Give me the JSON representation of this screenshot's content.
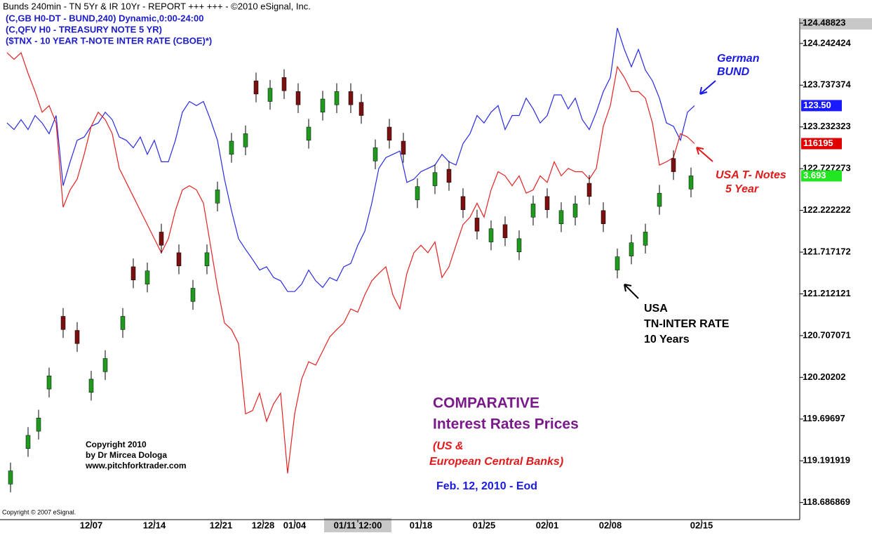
{
  "header": "Bunds  240min - TN 5Yr & IR 10Yr - REPORT +++ +++ - ©2010 eSignal, Inc.",
  "annotations": {
    "bund": [
      "German",
      "BUND"
    ],
    "tnotes": [
      "USA T- Notes",
      "5 Year"
    ],
    "rate": [
      "USA",
      "TN-INTER RATE",
      "10 Years"
    ],
    "title": [
      "COMPARATIVE",
      "Interest Rates Prices"
    ],
    "subtitle": [
      "(US &",
      "European Central Banks)"
    ],
    "date": "Feb. 12, 2010 - Eod",
    "copyright": [
      "Copyright 2010",
      "by Dr Mircea Dologa",
      "www.pitchforktrader.com"
    ],
    "esignal": "Copyright © 2007 eSignal."
  },
  "chart_data": [
    {
      "type": "line",
      "x": [
        0,
        1,
        2,
        3,
        4,
        5,
        6,
        7,
        8,
        9,
        10,
        11,
        12,
        13,
        14,
        15,
        16,
        17,
        18,
        19,
        20,
        21,
        22,
        23,
        24,
        25,
        26,
        27,
        28,
        29,
        30,
        31,
        32,
        33,
        34,
        35,
        36,
        37,
        38,
        39,
        40,
        41,
        42,
        43,
        44,
        45,
        46,
        47,
        48,
        49,
        50,
        51,
        52,
        53,
        54,
        55,
        56,
        57,
        58,
        59,
        60,
        61,
        62,
        63,
        64,
        65,
        66,
        67,
        68,
        69,
        70,
        71,
        72,
        73,
        74,
        75,
        76,
        77,
        78,
        79,
        80,
        81,
        82,
        83,
        84,
        85,
        86,
        87,
        88,
        89,
        90,
        91,
        92,
        93,
        94,
        95,
        96,
        97,
        98
      ],
      "series": [
        {
          "name": "(C,GB H0-DT - BUND,240) Dynamic,0:00-24:00",
          "color": "#2a2ae6",
          "badge_color": "#1a1aff",
          "last_label": "123.50",
          "values": [
            123.28,
            123.2,
            123.32,
            123.2,
            123.37,
            123.28,
            123.15,
            123.37,
            122.52,
            122.81,
            123.07,
            123.11,
            123.24,
            123.28,
            123.41,
            123.32,
            123.11,
            123.07,
            122.98,
            123.11,
            122.9,
            123.07,
            122.81,
            122.81,
            123.07,
            123.41,
            123.54,
            123.49,
            123.54,
            123.32,
            123.07,
            122.6,
            122.22,
            121.88,
            121.75,
            121.63,
            121.5,
            121.54,
            121.41,
            121.37,
            121.24,
            121.24,
            121.33,
            121.5,
            121.37,
            121.29,
            121.41,
            121.37,
            121.54,
            121.58,
            121.8,
            121.97,
            122.31,
            122.73,
            122.86,
            122.9,
            122.94,
            122.56,
            122.6,
            122.69,
            122.73,
            122.77,
            122.9,
            122.81,
            122.77,
            123.03,
            123.15,
            123.37,
            123.28,
            123.41,
            123.49,
            123.2,
            123.37,
            123.37,
            123.58,
            123.45,
            123.28,
            123.37,
            123.62,
            123.62,
            123.45,
            123.58,
            123.32,
            123.2,
            123.41,
            123.66,
            123.83,
            124.43,
            124.17,
            123.96,
            124.17,
            123.92,
            123.79,
            123.58,
            123.28,
            123.24,
            123.07,
            123.41,
            123.49
          ]
        },
        {
          "name": "(C,QFV H0 - TREASURY NOTE 5 YR)",
          "color": "#e42222",
          "badge_color": "#e00000",
          "last_label": "116195",
          "values": [
            124.13,
            124.05,
            124.13,
            123.88,
            123.66,
            123.41,
            123.49,
            123.28,
            122.26,
            122.47,
            122.6,
            122.9,
            123.24,
            123.41,
            123.32,
            123.15,
            122.73,
            122.56,
            122.39,
            122.22,
            122.05,
            121.88,
            121.71,
            121.88,
            122.22,
            122.47,
            122.52,
            122.47,
            122.31,
            121.8,
            121.29,
            120.86,
            120.78,
            120.61,
            119.76,
            119.8,
            120.01,
            119.67,
            119.88,
            120.01,
            119.04,
            119.76,
            120.18,
            120.39,
            120.35,
            120.52,
            120.69,
            120.78,
            120.86,
            121.03,
            120.99,
            121.2,
            121.37,
            121.46,
            121.54,
            121.2,
            121.03,
            121.46,
            121.71,
            121.8,
            121.71,
            121.84,
            121.41,
            121.54,
            121.8,
            122.05,
            122.14,
            122.31,
            122.14,
            122.47,
            122.69,
            122.64,
            122.52,
            122.64,
            122.43,
            122.47,
            122.64,
            122.56,
            122.81,
            122.64,
            122.73,
            122.69,
            122.69,
            122.6,
            122.73,
            123.24,
            123.49,
            123.96,
            123.83,
            123.66,
            123.66,
            123.58,
            123.28,
            122.77,
            122.81,
            122.86,
            123.15,
            123.11,
            123.03
          ]
        }
      ],
      "xlim": [
        0,
        113
      ],
      "xticks": [
        {
          "value": 12,
          "label": "12/07"
        },
        {
          "value": 21,
          "label": "12/14"
        },
        {
          "value": 30.5,
          "label": "12/21"
        },
        {
          "value": 36.5,
          "label": "12/28"
        },
        {
          "value": 41,
          "label": "01/04"
        },
        {
          "value": 50,
          "label": "01/11 12:00"
        },
        {
          "value": 59,
          "label": "01/18"
        },
        {
          "value": 68,
          "label": "01/25"
        },
        {
          "value": 77,
          "label": "02/01"
        },
        {
          "value": 86,
          "label": "02/08"
        },
        {
          "value": 99,
          "label": "02/15"
        }
      ],
      "ylim": [
        118.48,
        124.53
      ],
      "yticks": [
        124.48823,
        124.242424,
        123.737374,
        123.232323,
        122.727273,
        122.222222,
        121.717172,
        121.212121,
        120.707071,
        120.20202,
        119.69697,
        119.191919,
        118.686869
      ]
    },
    {
      "type": "candlestick",
      "name": "($TNX - 10 YEAR T-NOTE INTER RATE (CBOE)*)",
      "up_color": "#1f9a1f",
      "down_color": "#7a1010",
      "wick_color": "#000000",
      "badge_color": "#22e622",
      "last_label": "3.693",
      "x": [
        0.5,
        3,
        4.5,
        6,
        8,
        10,
        12,
        14,
        16.5,
        18,
        20,
        22,
        24.5,
        26.5,
        28.5,
        30,
        32,
        34,
        35.5,
        37.5,
        39.5,
        41.5,
        43,
        45,
        47,
        49,
        50.5,
        52.5,
        54.5,
        56.5,
        58.5,
        61,
        63,
        65,
        67,
        69,
        71,
        73,
        75,
        77,
        79,
        81,
        83,
        85,
        87,
        89,
        91,
        93,
        95,
        97.5
      ],
      "open": [
        118.91,
        119.34,
        119.55,
        120.06,
        120.94,
        120.77,
        120.02,
        120.27,
        120.78,
        121.54,
        121.33,
        121.96,
        121.71,
        121.12,
        121.55,
        122.31,
        122.9,
        122.99,
        123.79,
        123.54,
        123.83,
        123.66,
        123.07,
        123.41,
        123.5,
        123.66,
        123.53,
        122.82,
        123.23,
        123.06,
        122.35,
        122.52,
        122.72,
        122.39,
        122.13,
        121.84,
        122.05,
        121.72,
        122.14,
        122.39,
        122.06,
        122.14,
        122.55,
        122.22,
        121.5,
        121.67,
        121.8,
        122.27,
        122.85,
        122.48
      ],
      "high": [
        119.17,
        119.6,
        119.81,
        120.32,
        121.04,
        120.87,
        120.28,
        120.53,
        121.04,
        121.64,
        121.59,
        122.06,
        121.81,
        121.38,
        121.81,
        122.57,
        123.16,
        123.25,
        123.89,
        123.8,
        123.93,
        123.76,
        123.33,
        123.67,
        123.76,
        123.76,
        123.63,
        123.08,
        123.33,
        123.16,
        122.61,
        122.78,
        122.82,
        122.49,
        122.23,
        122.1,
        122.15,
        121.98,
        122.4,
        122.49,
        122.32,
        122.4,
        122.65,
        122.32,
        121.76,
        121.93,
        122.06,
        122.53,
        122.95,
        122.74
      ],
      "low": [
        118.81,
        119.24,
        119.45,
        119.96,
        120.68,
        120.51,
        119.92,
        120.17,
        120.68,
        121.28,
        121.23,
        121.7,
        121.45,
        121.02,
        121.45,
        122.21,
        122.8,
        122.89,
        123.53,
        123.44,
        123.57,
        123.4,
        122.97,
        123.31,
        123.4,
        123.4,
        123.27,
        122.72,
        122.97,
        122.8,
        122.25,
        122.42,
        122.46,
        122.13,
        121.87,
        121.74,
        121.79,
        121.62,
        122.04,
        122.13,
        121.96,
        122.04,
        122.29,
        121.96,
        121.4,
        121.57,
        121.7,
        122.17,
        122.59,
        122.38
      ],
      "close": [
        119.07,
        119.5,
        119.71,
        120.22,
        120.78,
        120.61,
        120.18,
        120.43,
        120.94,
        121.38,
        121.49,
        121.8,
        121.55,
        121.28,
        121.71,
        122.47,
        123.06,
        123.15,
        123.63,
        123.7,
        123.67,
        123.5,
        123.23,
        123.57,
        123.66,
        123.5,
        123.37,
        122.98,
        123.07,
        122.9,
        122.51,
        122.68,
        122.56,
        122.23,
        121.97,
        122.0,
        121.89,
        121.88,
        122.3,
        122.23,
        122.22,
        122.3,
        122.39,
        122.06,
        121.66,
        121.83,
        121.96,
        122.43,
        122.69,
        122.64
      ]
    }
  ]
}
